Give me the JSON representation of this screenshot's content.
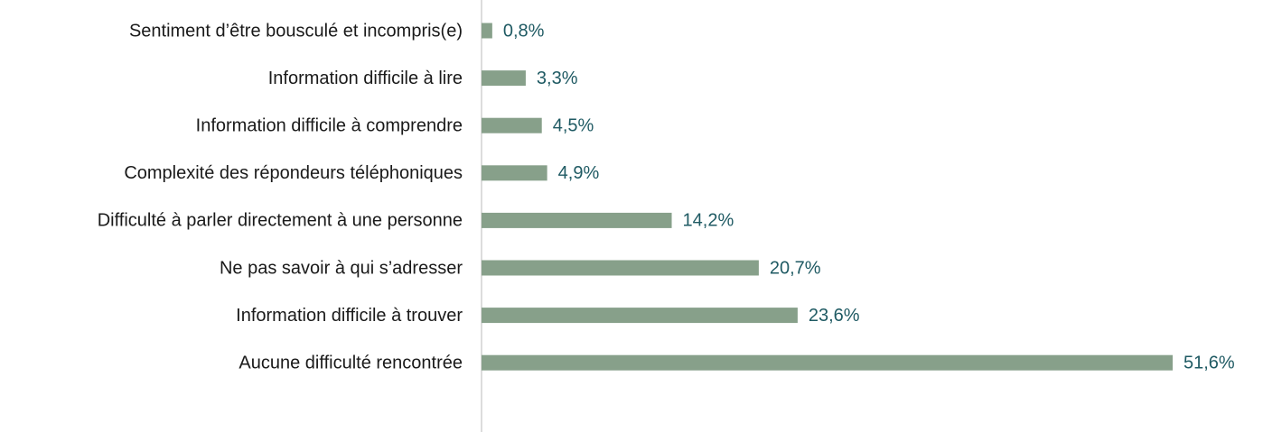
{
  "chart_data": {
    "type": "bar",
    "orientation": "horizontal",
    "color": "#87a08a",
    "categories": [
      "Sentiment d’être bousculé et incompris(e)",
      "Information difficile à lire",
      "Information difficile à comprendre",
      "Complexité des répondeurs téléphoniques",
      "Difficulté à parler directement à une personne",
      "Ne pas savoir à qui s’adresser",
      "Information difficile à trouver",
      "Aucune difficulté rencontrée"
    ],
    "values": [
      0.8,
      3.3,
      4.5,
      4.9,
      14.2,
      20.7,
      23.6,
      51.6
    ],
    "value_labels": [
      "0,8%",
      "3,3%",
      "4,5%",
      "4,9%",
      "14,2%",
      "20,7%",
      "23,6%",
      "51,6%"
    ]
  }
}
